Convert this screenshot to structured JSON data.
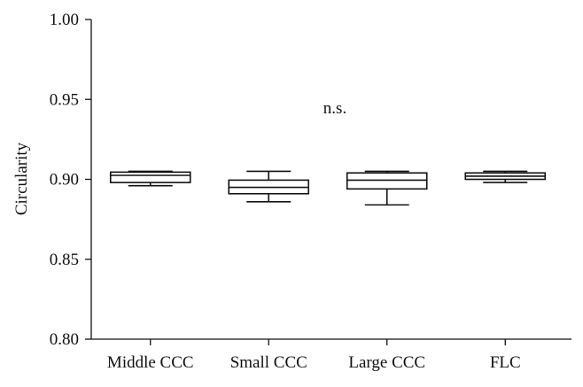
{
  "chart_data": {
    "type": "box",
    "ylabel": "Circularity",
    "xlabel": "",
    "ylim": [
      0.8,
      1.0
    ],
    "y_ticks": [
      "0.80",
      "0.85",
      "0.90",
      "0.95",
      "1.00"
    ],
    "grid": false,
    "annotation": "n.s.",
    "categories": [
      "Middle CCC",
      "Small CCC",
      "Large CCC",
      "FLC"
    ],
    "boxes": [
      {
        "category": "Middle CCC",
        "min": 0.896,
        "q1": 0.898,
        "median": 0.9025,
        "q3": 0.9045,
        "max": 0.905
      },
      {
        "category": "Small CCC",
        "min": 0.886,
        "q1": 0.891,
        "median": 0.895,
        "q3": 0.8995,
        "max": 0.905
      },
      {
        "category": "Large CCC",
        "min": 0.884,
        "q1": 0.894,
        "median": 0.8995,
        "q3": 0.904,
        "max": 0.905
      },
      {
        "category": "FLC",
        "min": 0.898,
        "q1": 0.9,
        "median": 0.902,
        "q3": 0.904,
        "max": 0.905
      }
    ],
    "colors": {
      "axis": "#111111",
      "box_stroke": "#111111",
      "box_fill": "#ffffff"
    }
  }
}
